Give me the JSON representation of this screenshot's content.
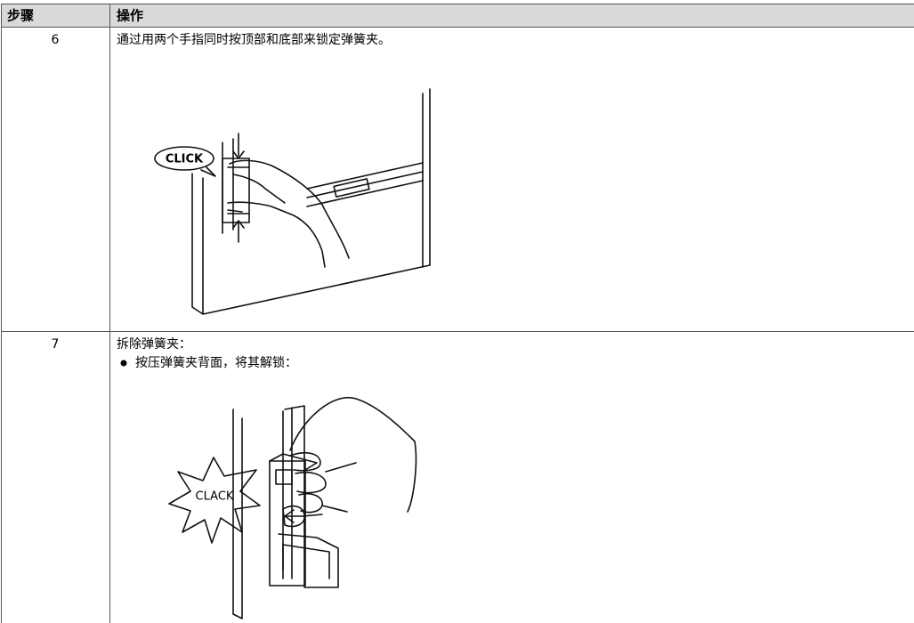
{
  "table": {
    "header": [
      "步骤",
      "操作"
    ],
    "rows": [
      {
        "step": "6",
        "text": "通过用两个手指同时按顶部和底部来锁定弹簧夹。",
        "image_label": "CLICK"
      },
      {
        "step": "7",
        "text": "拆除弹簧夹：",
        "bullets": [
          "按压弹簧夹背面，将其解锁："
        ],
        "image_label": "CLACK"
      }
    ]
  }
}
